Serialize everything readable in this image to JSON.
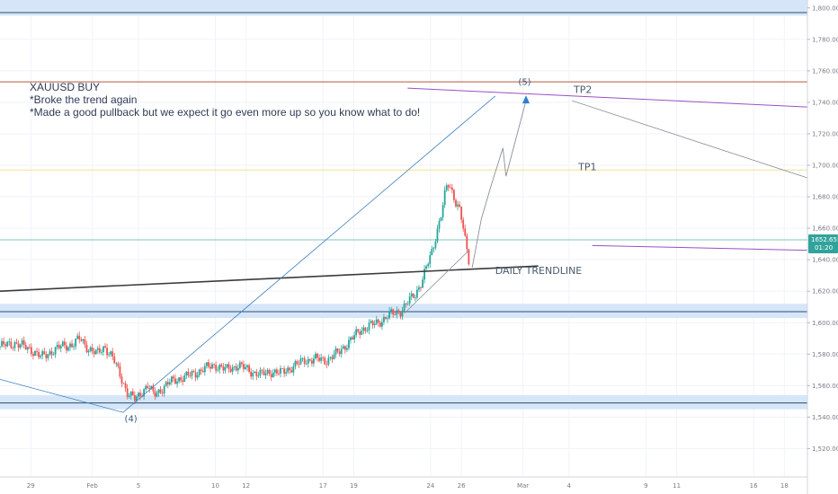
{
  "chart_data": {
    "type": "candlestick",
    "title": "",
    "symbol_note": {
      "lines": [
        "XAUUSD BUY",
        "*Broke the trend again",
        "*Made a good pullback but we expect it go even more up so you know what to do!"
      ]
    },
    "x_axis": {
      "tick_labels": [
        "29",
        "Feb",
        "5",
        "10",
        "12",
        "17",
        "19",
        "24",
        "26",
        "Mar",
        "4",
        "9",
        "11",
        "16",
        "18"
      ],
      "tick_days": [
        -3,
        1,
        4,
        9,
        11,
        16,
        18,
        23,
        25,
        29,
        32,
        37,
        39,
        44,
        46
      ],
      "xlim": [
        -5,
        47.5
      ]
    },
    "y_axis": {
      "tick_labels": [
        "1,800.000",
        "1,780.000",
        "1,760.000",
        "1,740.000",
        "1,720.000",
        "1,700.000",
        "1,680.000",
        "1,660.000",
        "1,640.000",
        "1,620.000",
        "1,600.000",
        "1,580.000",
        "1,560.000",
        "1,540.000",
        "1,520.000"
      ],
      "ticks": [
        1800,
        1780,
        1760,
        1740,
        1720,
        1700,
        1680,
        1660,
        1640,
        1620,
        1600,
        1580,
        1560,
        1540,
        1520
      ],
      "ylim": [
        1502,
        1805
      ]
    },
    "current_price": {
      "label": "1652.655",
      "value": 1652.655,
      "countdown": "01:20"
    },
    "price_path": [
      [
        -5,
        1585
      ],
      [
        -4,
        1587
      ],
      [
        -3,
        1583
      ],
      [
        -2.3,
        1578
      ],
      [
        -1.6,
        1582
      ],
      [
        -1,
        1585
      ],
      [
        -0.3,
        1586
      ],
      [
        0.2,
        1590
      ],
      [
        0.7,
        1584
      ],
      [
        1.3,
        1580
      ],
      [
        1.8,
        1585
      ],
      [
        2.3,
        1578
      ],
      [
        2.8,
        1567
      ],
      [
        3.3,
        1555
      ],
      [
        3.8,
        1551
      ],
      [
        4.2,
        1556
      ],
      [
        4.6,
        1560
      ],
      [
        5.0,
        1554
      ],
      [
        5.4,
        1557
      ],
      [
        6.0,
        1562
      ],
      [
        6.8,
        1565
      ],
      [
        7.5,
        1567
      ],
      [
        8.3,
        1571
      ],
      [
        9.0,
        1573
      ],
      [
        9.7,
        1570
      ],
      [
        10.5,
        1573
      ],
      [
        11.3,
        1569
      ],
      [
        12.0,
        1567
      ],
      [
        12.7,
        1569
      ],
      [
        13.3,
        1568
      ],
      [
        14.0,
        1572
      ],
      [
        14.8,
        1576
      ],
      [
        15.5,
        1577
      ],
      [
        16.2,
        1576
      ],
      [
        17.0,
        1581
      ],
      [
        17.8,
        1589
      ],
      [
        18.4,
        1595
      ],
      [
        19.0,
        1598
      ],
      [
        19.6,
        1600
      ],
      [
        20.3,
        1605
      ],
      [
        21.0,
        1607
      ],
      [
        21.5,
        1613
      ],
      [
        22.0,
        1618
      ],
      [
        22.4,
        1626
      ],
      [
        22.8,
        1637
      ],
      [
        23.1,
        1645
      ],
      [
        23.4,
        1658
      ],
      [
        23.7,
        1670
      ],
      [
        23.9,
        1680
      ],
      [
        24.1,
        1688
      ],
      [
        24.3,
        1685
      ],
      [
        24.6,
        1678
      ],
      [
        24.9,
        1672
      ],
      [
        25.1,
        1661
      ],
      [
        25.3,
        1648
      ],
      [
        25.5,
        1638
      ]
    ],
    "horizontal_levels": [
      {
        "value": 1797,
        "color": "#2a4d6e",
        "zone": [
          1795,
          1807
        ],
        "zone_color": "#d6e6f8"
      },
      {
        "value": 1753,
        "color": "#b05a3c"
      },
      {
        "value": 1697,
        "color": "#f3e08a"
      },
      {
        "value": 1652.655,
        "color": "#7fc6c2"
      },
      {
        "value": 1607,
        "color": "#2a4d6e",
        "zone": [
          1603,
          1612
        ],
        "zone_color": "#d6e6f8"
      },
      {
        "value": 1549,
        "color": "#2a4d6e",
        "zone": [
          1545,
          1554
        ],
        "zone_color": "#d6e6f8"
      }
    ],
    "trend_lines": [
      {
        "name": "daily-trendline",
        "from": [
          -5,
          1620
        ],
        "to": [
          30,
          1636
        ],
        "color": "#3b3b3b",
        "width": 1.6
      },
      {
        "name": "tp2-resistance",
        "from": [
          21.5,
          1749
        ],
        "to": [
          47.5,
          1737
        ],
        "color": "#9b4fc4",
        "width": 1
      },
      {
        "name": "purple-lower",
        "from": [
          33.5,
          1649
        ],
        "to": [
          47.5,
          1646
        ],
        "color": "#9b4fc4",
        "width": 1
      },
      {
        "name": "projection-down",
        "from": [
          32.2,
          1741
        ],
        "to": [
          47.5,
          1692
        ],
        "color": "#8a8f98",
        "width": 0.8
      },
      {
        "name": "wave-leg-a",
        "from": [
          -5,
          1564
        ],
        "to": [
          3,
          1543
        ],
        "color": "#3f80c0",
        "width": 0.8
      },
      {
        "name": "wave-leg-b",
        "from": [
          3,
          1543
        ],
        "to": [
          27.2,
          1744
        ],
        "color": "#3f80c0",
        "width": 0.8
      },
      {
        "name": "wave-channel",
        "from": [
          21.3,
          1606
        ],
        "to": [
          25.5,
          1646
        ],
        "color": "#8a8f98",
        "width": 0.8
      }
    ],
    "projection_path": [
      [
        25.7,
        1635
      ],
      [
        26.3,
        1666
      ],
      [
        26.9,
        1686
      ],
      [
        27.7,
        1711
      ],
      [
        27.9,
        1693
      ],
      [
        29.2,
        1741
      ]
    ],
    "labels": {
      "tp2": {
        "text": "TP2",
        "at": [
          32.3,
          1746
        ]
      },
      "tp1": {
        "text": "TP1",
        "at": [
          32.6,
          1697
        ]
      },
      "trendline": {
        "text": "DAILY TRENDLINE",
        "at": [
          27.2,
          1631
        ]
      },
      "wave4": {
        "text": "(4)",
        "at": [
          3.1,
          1537
        ]
      },
      "wave5": {
        "text": "(5)",
        "at": [
          28.7,
          1751
        ]
      }
    },
    "colors": {
      "bull": "#26a69a",
      "bear": "#ef5350",
      "grid": "#f0f3fa",
      "axis_text": "#787b86"
    },
    "grid": true
  }
}
